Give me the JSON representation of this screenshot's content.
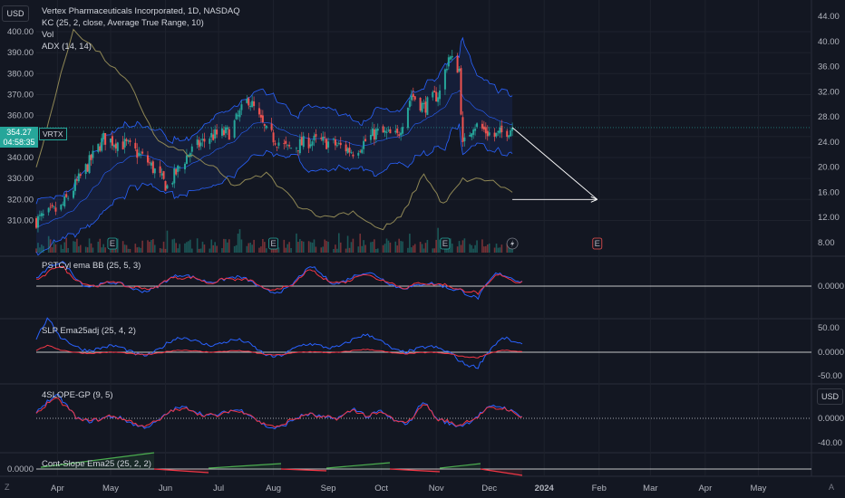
{
  "header": {
    "currency_button": "USD",
    "title": "Vertex Pharmaceuticals Incorporated, 1D, NASDAQ",
    "indicators": [
      "KC (25, 2, close, Average True Range, 10)",
      "Vol",
      "ADX (14, 14)"
    ]
  },
  "price_tag": {
    "price": "354.27",
    "countdown": "04:58:35",
    "symbol": "VRTX"
  },
  "panes": {
    "pane2_title": "PSTCyl ema BB (25, 5, 3)",
    "pane3_title": "SLP Ema25adj (25, 4, 2)",
    "pane4_title": "4SLOPE-GP (9, 5)",
    "pane5_title": "Cont-Slope Ema25 (25, 2, 2)",
    "pane4_currency": "USD"
  },
  "axes": {
    "price_left_ticks": [
      "400.00",
      "390.00",
      "380.00",
      "370.00",
      "360.00",
      "350.00",
      "340.00",
      "330.00",
      "320.00",
      "310.00"
    ],
    "adx_right_ticks": [
      "44.00",
      "40.00",
      "36.00",
      "32.00",
      "28.00",
      "24.00",
      "20.00",
      "16.00",
      "12.00",
      "8.00"
    ],
    "pane2_ticks": [
      "0.0000"
    ],
    "pane3_ticks": [
      "50.00",
      "0.0000",
      "-50.00"
    ],
    "pane4_ticks": [
      "0.0000",
      "-40.00"
    ],
    "pane5_ticks": [
      "0.0000"
    ],
    "time_ticks": [
      "Apr",
      "May",
      "Jun",
      "Jul",
      "Aug",
      "Sep",
      "Oct",
      "Nov",
      "Dec",
      "2024",
      "Feb",
      "Mar",
      "Apr",
      "May"
    ],
    "bold_tick": "2024",
    "earnings_marker": "E",
    "corner_left": "Z",
    "corner_right": "A"
  },
  "colors": {
    "up": "#26a69a",
    "down": "#ef5350",
    "band": "#2962ff",
    "adx": "#8f8755",
    "blue_line": "#2962ff",
    "red_line": "#f23645",
    "green_line": "#4caf50"
  },
  "chart_data": {
    "type": "candlestick",
    "symbol": "VRTX",
    "interval": "1D",
    "x_range": [
      "2023-03-20",
      "2024-05-31"
    ],
    "price_range": [
      303,
      404
    ],
    "last_price": 354.27,
    "keypoints_close": [
      [
        "2023-03-20",
        310
      ],
      [
        "2023-04-03",
        316
      ],
      [
        "2023-04-15",
        332
      ],
      [
        "2023-04-27",
        349
      ],
      [
        "2023-05-10",
        346
      ],
      [
        "2023-05-22",
        338
      ],
      [
        "2023-06-02",
        326
      ],
      [
        "2023-06-14",
        342
      ],
      [
        "2023-06-26",
        350
      ],
      [
        "2023-07-07",
        352
      ],
      [
        "2023-07-18",
        368
      ],
      [
        "2023-07-28",
        352
      ],
      [
        "2023-08-09",
        344
      ],
      [
        "2023-08-22",
        348
      ],
      [
        "2023-09-02",
        347
      ],
      [
        "2023-09-15",
        343
      ],
      [
        "2023-09-28",
        352
      ],
      [
        "2023-10-10",
        350
      ],
      [
        "2023-10-18",
        370
      ],
      [
        "2023-10-25",
        364
      ],
      [
        "2023-11-03",
        371
      ],
      [
        "2023-11-08",
        388
      ],
      [
        "2023-11-14",
        382
      ],
      [
        "2023-11-16",
        345
      ],
      [
        "2023-11-22",
        356
      ],
      [
        "2023-12-04",
        350
      ],
      [
        "2023-12-14",
        354.27
      ]
    ],
    "adx_keypoints": [
      [
        "2023-03-20",
        20
      ],
      [
        "2023-04-10",
        42
      ],
      [
        "2023-04-25",
        38
      ],
      [
        "2023-05-12",
        33
      ],
      [
        "2023-05-28",
        24
      ],
      [
        "2023-06-14",
        22
      ],
      [
        "2023-06-28",
        20
      ],
      [
        "2023-07-10",
        17
      ],
      [
        "2023-07-28",
        19
      ],
      [
        "2023-08-15",
        14
      ],
      [
        "2023-08-30",
        12
      ],
      [
        "2023-09-15",
        13
      ],
      [
        "2023-09-30",
        10
      ],
      [
        "2023-10-12",
        12
      ],
      [
        "2023-10-25",
        19
      ],
      [
        "2023-11-05",
        14
      ],
      [
        "2023-11-16",
        18
      ],
      [
        "2023-12-01",
        18
      ],
      [
        "2023-12-14",
        16
      ]
    ],
    "projection_arrow": {
      "from": [
        "2023-12-14",
        354.27
      ],
      "to": [
        "2024-01-31",
        320
      ],
      "horizontal_from": [
        "2023-12-14",
        320
      ]
    }
  }
}
